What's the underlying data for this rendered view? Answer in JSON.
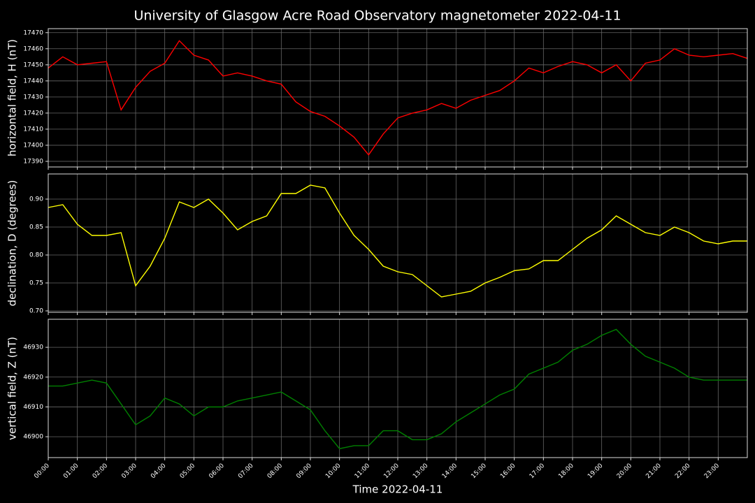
{
  "chart_data": [
    {
      "type": "line",
      "title": "University of Glasgow Acre Road Observatory magnetometer 2022-04-11",
      "ylabel": "horizontal field, H (nT)",
      "color": "#ff0000",
      "grid": true,
      "x": [
        0,
        0.5,
        1,
        1.5,
        2,
        2.5,
        3,
        3.5,
        4,
        4.5,
        5,
        5.5,
        6,
        6.5,
        7,
        7.5,
        8,
        8.5,
        9,
        9.5,
        10,
        10.5,
        11,
        11.5,
        12,
        12.5,
        13,
        13.5,
        14,
        14.5,
        15,
        15.5,
        16,
        16.5,
        17,
        17.5,
        18,
        18.5,
        19,
        19.5,
        20,
        20.5,
        21,
        21.5,
        22,
        22.5,
        23,
        23.5,
        24
      ],
      "values": [
        17448,
        17455,
        17450,
        17451,
        17452,
        17422,
        17436,
        17446,
        17451,
        17465,
        17456,
        17453,
        17443,
        17445,
        17443,
        17440,
        17438,
        17427,
        17421,
        17418,
        17412,
        17405,
        17394,
        17407,
        17417,
        17420,
        17422,
        17426,
        17423,
        17428,
        17431,
        17434,
        17440,
        17448,
        17445,
        17449,
        17452,
        17450,
        17445,
        17450,
        17440,
        17451,
        17453,
        17460,
        17456,
        17455,
        17456,
        17457,
        17454
      ],
      "xlim": [
        0,
        24
      ],
      "xticks": [
        0,
        1,
        2,
        3,
        4,
        5,
        6,
        7,
        8,
        9,
        10,
        11,
        12,
        13,
        14,
        15,
        16,
        17,
        18,
        19,
        20,
        21,
        22,
        23
      ],
      "ylim": [
        17386.5,
        17472.5
      ],
      "yticks": [
        17390,
        17400,
        17410,
        17420,
        17430,
        17440,
        17450,
        17460,
        17470
      ]
    },
    {
      "type": "line",
      "ylabel": "declination, D (degrees)",
      "color": "#ffff00",
      "grid": true,
      "x": [
        0,
        0.5,
        1,
        1.5,
        2,
        2.5,
        3,
        3.5,
        4,
        4.5,
        5,
        5.5,
        6,
        6.5,
        7,
        7.5,
        8,
        8.5,
        9,
        9.5,
        10,
        10.5,
        11,
        11.5,
        12,
        12.5,
        13,
        13.5,
        14,
        14.5,
        15,
        15.5,
        16,
        16.5,
        17,
        17.5,
        18,
        18.5,
        19,
        19.5,
        20,
        20.5,
        21,
        21.5,
        22,
        22.5,
        23,
        23.5,
        24
      ],
      "values": [
        0.885,
        0.89,
        0.855,
        0.835,
        0.835,
        0.84,
        0.745,
        0.78,
        0.83,
        0.895,
        0.885,
        0.9,
        0.875,
        0.845,
        0.86,
        0.87,
        0.91,
        0.91,
        0.925,
        0.92,
        0.875,
        0.835,
        0.81,
        0.78,
        0.77,
        0.765,
        0.745,
        0.725,
        0.73,
        0.735,
        0.75,
        0.76,
        0.772,
        0.775,
        0.79,
        0.79,
        0.81,
        0.83,
        0.845,
        0.87,
        0.855,
        0.84,
        0.835,
        0.85,
        0.84,
        0.825,
        0.82,
        0.825,
        0.825
      ],
      "xlim": [
        0,
        24
      ],
      "xticks": [
        0,
        1,
        2,
        3,
        4,
        5,
        6,
        7,
        8,
        9,
        10,
        11,
        12,
        13,
        14,
        15,
        16,
        17,
        18,
        19,
        20,
        21,
        22,
        23
      ],
      "ylim": [
        0.6975,
        0.945
      ],
      "yticks": [
        {
          "value": 0.7,
          "label": "0.70"
        },
        0.75,
        {
          "value": 0.8,
          "label": "0.80"
        },
        0.85,
        {
          "value": 0.9,
          "label": "0.90"
        }
      ]
    },
    {
      "type": "line",
      "ylabel": "vertical field, Z (nT)",
      "xlabel": "Time 2022-04-11",
      "color": "#008000",
      "grid": true,
      "x": [
        0,
        0.5,
        1,
        1.5,
        2,
        2.5,
        3,
        3.5,
        4,
        4.5,
        5,
        5.5,
        6,
        6.5,
        7,
        7.5,
        8,
        8.5,
        9,
        9.5,
        10,
        10.5,
        11,
        11.5,
        12,
        12.5,
        13,
        13.5,
        14,
        14.5,
        15,
        15.5,
        16,
        16.5,
        17,
        17.5,
        18,
        18.5,
        19,
        19.5,
        20,
        20.5,
        21,
        21.5,
        22,
        22.5,
        23,
        23.5,
        24
      ],
      "values": [
        46917,
        46917,
        46918,
        46919,
        46918,
        46911,
        46904,
        46907,
        46913,
        46911,
        46907,
        46910,
        46910,
        46912,
        46913,
        46914,
        46915,
        46912,
        46909,
        46902,
        46896,
        46897,
        46897,
        46902,
        46902,
        46899,
        46899,
        46901,
        46905,
        46908,
        46911,
        46914,
        46916,
        46921,
        46923,
        46925,
        46929,
        46931,
        46934,
        46936,
        46931,
        46927,
        46925,
        46923,
        46920,
        46919,
        46919,
        46919,
        46919
      ],
      "xlim": [
        0,
        24
      ],
      "xticks": [
        {
          "value": 0,
          "label": "00:00"
        },
        {
          "value": 1,
          "label": "01:00"
        },
        {
          "value": 2,
          "label": "02:00"
        },
        {
          "value": 3,
          "label": "03:00"
        },
        {
          "value": 4,
          "label": "04:00"
        },
        {
          "value": 5,
          "label": "05:00"
        },
        {
          "value": 6,
          "label": "06:00"
        },
        {
          "value": 7,
          "label": "07:00"
        },
        {
          "value": 8,
          "label": "08:00"
        },
        {
          "value": 9,
          "label": "09:00"
        },
        {
          "value": 10,
          "label": "10:00"
        },
        {
          "value": 11,
          "label": "11:00"
        },
        {
          "value": 12,
          "label": "12:00"
        },
        {
          "value": 13,
          "label": "13:00"
        },
        {
          "value": 14,
          "label": "14:00"
        },
        {
          "value": 15,
          "label": "15:00"
        },
        {
          "value": 16,
          "label": "16:00"
        },
        {
          "value": 17,
          "label": "17:00"
        },
        {
          "value": 18,
          "label": "18:00"
        },
        {
          "value": 19,
          "label": "19:00"
        },
        {
          "value": 20,
          "label": "20:00"
        },
        {
          "value": 21,
          "label": "21:00"
        },
        {
          "value": 22,
          "label": "22:00"
        },
        {
          "value": 23,
          "label": "23:00"
        }
      ],
      "ylim": [
        46893,
        46939.4
      ],
      "yticks": [
        46900,
        46910,
        46920,
        46930
      ]
    }
  ]
}
